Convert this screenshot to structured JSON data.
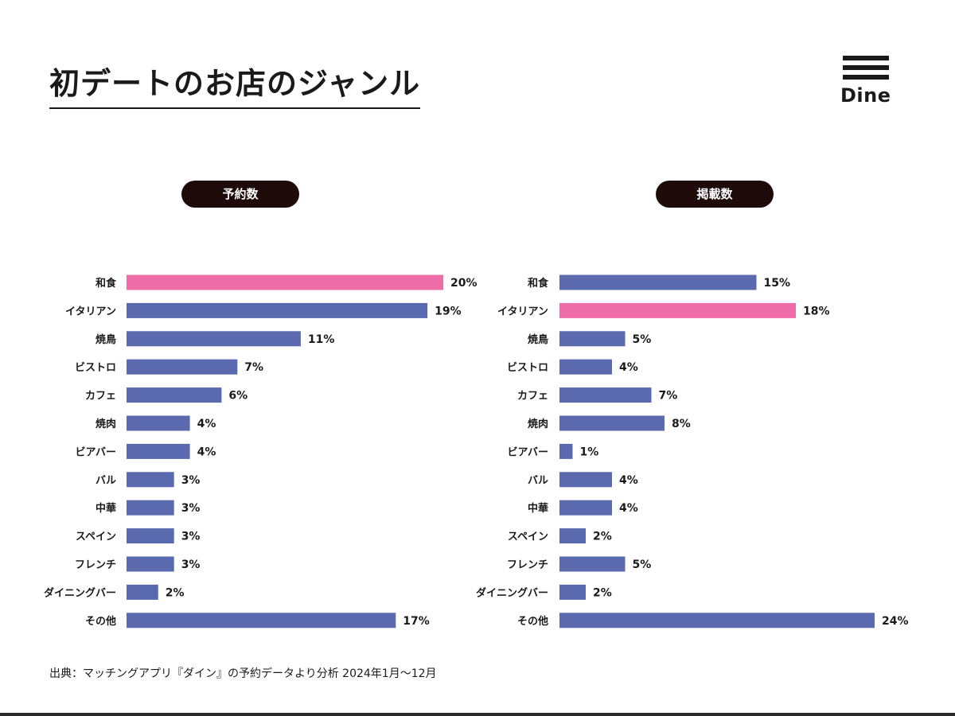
{
  "page": {
    "title": "初デートのお店のジャンル",
    "source": "出典：マッチングアプリ『ダイン』の予約データより分析 2024年1月〜12月",
    "logo_text": "Dine"
  },
  "colors": {
    "bar": "#5b6aae",
    "highlight": "#ee6ca8",
    "pill": "#1f0a0a",
    "pill_text": "#ffffff",
    "text": "#1a1a1a"
  },
  "chart_data": [
    {
      "type": "bar",
      "orientation": "horizontal",
      "title": "予約数",
      "categories": [
        "和食",
        "イタリアン",
        "焼鳥",
        "ビストロ",
        "カフェ",
        "焼肉",
        "ビアバー",
        "バル",
        "中華",
        "スペイン",
        "フレンチ",
        "ダイニングバー",
        "その他"
      ],
      "values": [
        20,
        19,
        11,
        7,
        6,
        4,
        4,
        3,
        3,
        3,
        3,
        2,
        17
      ],
      "value_labels": [
        "20%",
        "19%",
        "11%",
        "7%",
        "6%",
        "4%",
        "4%",
        "3%",
        "3%",
        "3%",
        "3%",
        "2%",
        "17%"
      ],
      "highlight_category": "和食",
      "unit": "%",
      "grid": false
    },
    {
      "type": "bar",
      "orientation": "horizontal",
      "title": "掲載数",
      "categories": [
        "和食",
        "イタリアン",
        "焼鳥",
        "ビストロ",
        "カフェ",
        "焼肉",
        "ビアバー",
        "バル",
        "中華",
        "スペイン",
        "フレンチ",
        "ダイニングバー",
        "その他"
      ],
      "values": [
        15,
        18,
        5,
        4,
        7,
        8,
        1,
        4,
        4,
        2,
        5,
        2,
        24
      ],
      "value_labels": [
        "15%",
        "18%",
        "5%",
        "4%",
        "7%",
        "8%",
        "1%",
        "4%",
        "4%",
        "2%",
        "5%",
        "2%",
        "24%"
      ],
      "highlight_category": "イタリアン",
      "unit": "%",
      "grid": false
    }
  ]
}
